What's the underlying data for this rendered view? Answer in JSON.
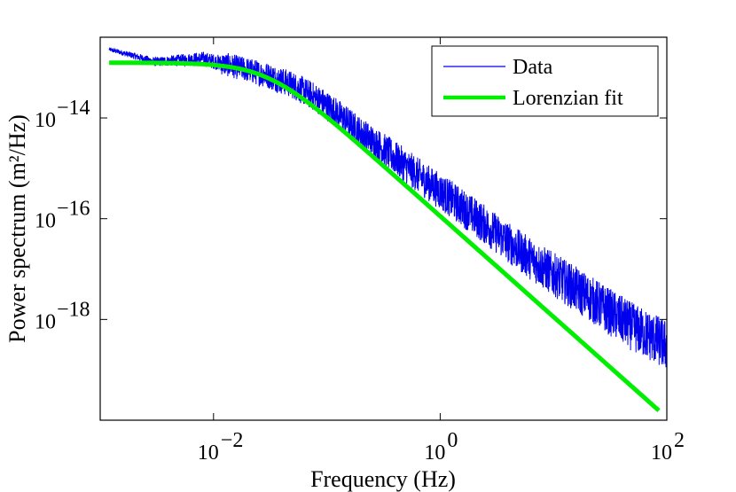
{
  "chart_data": {
    "type": "line",
    "title": "",
    "xlabel": "Frequency (Hz)",
    "ylabel": "Power spectrum (m²/Hz)",
    "xscale": "log",
    "yscale": "log",
    "xlim": [
      0.001,
      100
    ],
    "ylim": [
      1e-20,
      4e-13
    ],
    "x_ticks": [
      {
        "value": 0.01,
        "base": "10",
        "exp": "−2"
      },
      {
        "value": 1,
        "base": "10",
        "exp": "0"
      },
      {
        "value": 100,
        "base": "10",
        "exp": "2"
      }
    ],
    "y_ticks": [
      {
        "value": 1e-14,
        "base": "10",
        "exp": "−14"
      },
      {
        "value": 1e-16,
        "base": "10",
        "exp": "−16"
      },
      {
        "value": 1e-18,
        "base": "10",
        "exp": "−18"
      }
    ],
    "grid": false,
    "legend_position": "top-right",
    "series": [
      {
        "name": "Data",
        "color": "#0000ee",
        "style": "noisy",
        "x": [
          0.0012,
          0.002,
          0.003,
          0.005,
          0.008,
          0.012,
          0.02,
          0.03,
          0.05,
          0.08,
          0.12,
          0.2,
          0.3,
          0.5,
          0.8,
          1.2,
          2,
          3,
          5,
          8,
          12,
          20,
          30,
          50,
          80,
          100
        ],
        "y": [
          2.3e-13,
          1.7e-13,
          1.3e-13,
          1.4e-13,
          1.5e-13,
          1.2e-13,
          9e-14,
          7e-14,
          4.5e-14,
          2.5e-14,
          1.3e-14,
          5e-15,
          2.6e-15,
          1.1e-15,
          5e-16,
          2.6e-16,
          1.1e-16,
          5.5e-17,
          2.3e-17,
          1.1e-17,
          6e-18,
          2.8e-18,
          1.5e-18,
          7e-19,
          4e-19,
          3e-19
        ]
      },
      {
        "name": "Lorenzian fit",
        "color": "#00ee00",
        "style": "lorentzian",
        "plateau": 1.25e-13,
        "corner_hz": 0.03,
        "x_start": 0.0012,
        "x_end": 85
      }
    ]
  }
}
